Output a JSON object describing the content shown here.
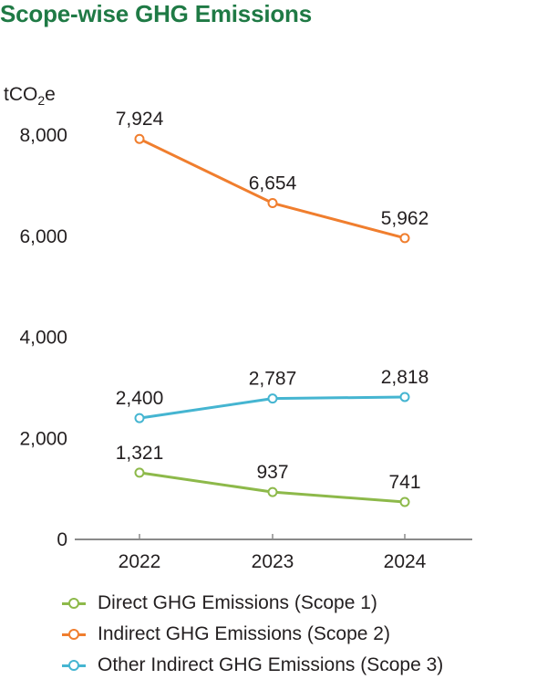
{
  "chart_data": {
    "type": "line",
    "title": "Scope-wise GHG Emissions",
    "unit_base": "tCO",
    "unit_sub": "2",
    "unit_tail": "e",
    "categories": [
      "2022",
      "2023",
      "2024"
    ],
    "ylim": [
      0,
      8000
    ],
    "yticks": [
      0,
      2000,
      4000,
      6000,
      8000
    ],
    "ytick_labels": [
      "0",
      "2,000",
      "4,000",
      "6,000",
      "8,000"
    ],
    "grid": false,
    "legend_position": "bottom",
    "series": [
      {
        "name": "Direct GHG Emissions (Scope 1)",
        "color": "#8db94a",
        "values": [
          1321,
          937,
          741
        ],
        "labels": [
          "1,321",
          "937",
          "741"
        ]
      },
      {
        "name": "Indirect GHG Emissions (Scope 2)",
        "color": "#f07e2e",
        "values": [
          7924,
          6654,
          5962
        ],
        "labels": [
          "7,924",
          "6,654",
          "5,962"
        ]
      },
      {
        "name": "Other Indirect GHG Emissions (Scope 3)",
        "color": "#45b5d1",
        "values": [
          2400,
          2787,
          2818
        ],
        "labels": [
          "2,400",
          "2,787",
          "2,818"
        ]
      }
    ]
  }
}
